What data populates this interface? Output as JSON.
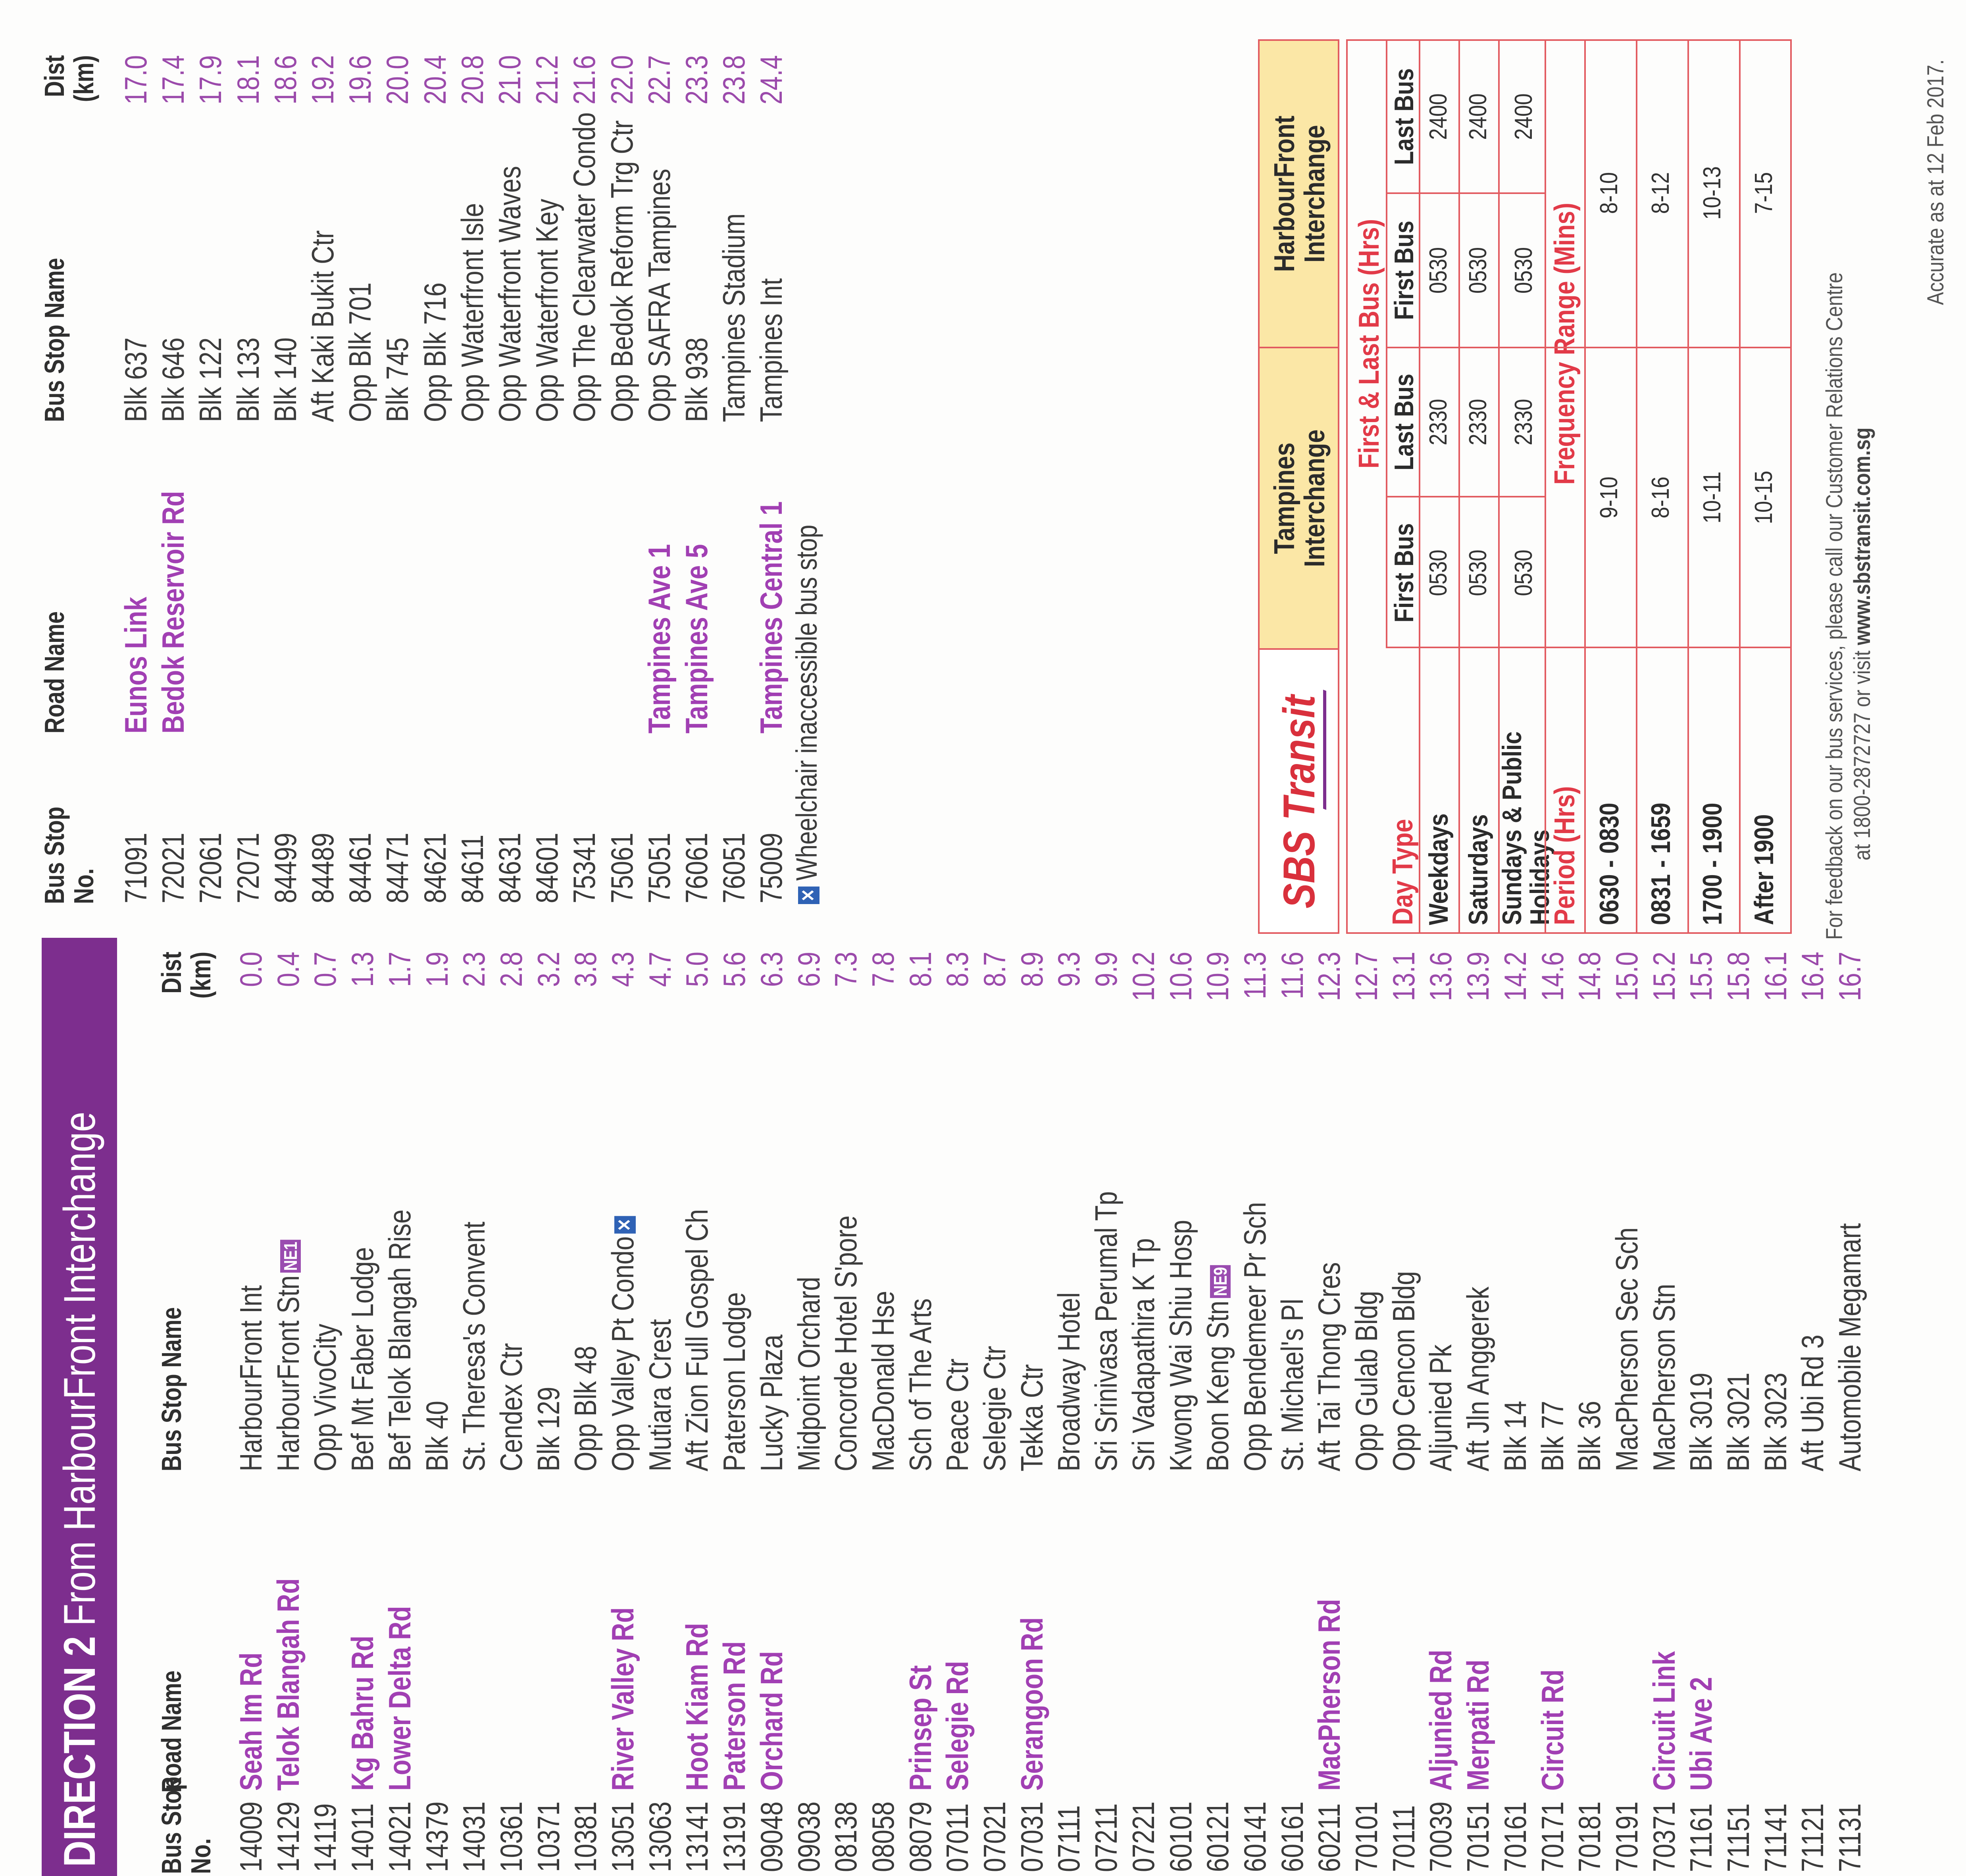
{
  "banner": {
    "lead": "DIRECTION 2",
    "rest": " From HarbourFront Interchange"
  },
  "headers": {
    "stop_no_l1": "Bus Stop",
    "stop_no_l2": "No.",
    "road": "Road Name",
    "name": "Bus Stop Name",
    "dist_l1": "Dist",
    "dist_l2": "(km)"
  },
  "stops_left": [
    {
      "no": "14009",
      "road": "Seah Im Rd",
      "name": "HarbourFront Int",
      "dist": "0.0"
    },
    {
      "no": "14129",
      "road": "Telok Blangah Rd",
      "name": "HarbourFront Stn",
      "tag": "NE1",
      "dist": "0.4"
    },
    {
      "no": "14119",
      "road": "",
      "name": "Opp VivoCity",
      "dist": "0.7"
    },
    {
      "no": "14011",
      "road": "Kg Bahru Rd",
      "name": "Bef Mt Faber Lodge",
      "dist": "1.3"
    },
    {
      "no": "14021",
      "road": "Lower Delta Rd",
      "name": "Bef Telok Blangah Rise",
      "dist": "1.7"
    },
    {
      "no": "14379",
      "road": "",
      "name": "Blk 40",
      "dist": "1.9"
    },
    {
      "no": "14031",
      "road": "",
      "name": "St. Theresa's Convent",
      "dist": "2.3"
    },
    {
      "no": "10361",
      "road": "",
      "name": "Cendex Ctr",
      "dist": "2.8"
    },
    {
      "no": "10371",
      "road": "",
      "name": "Blk 129",
      "dist": "3.2"
    },
    {
      "no": "10381",
      "road": "",
      "name": "Opp Blk 48",
      "dist": "3.8"
    },
    {
      "no": "13051",
      "road": "River Valley Rd",
      "name": "Opp Valley Pt Condo",
      "wc": true,
      "dist": "4.3"
    },
    {
      "no": "13063",
      "road": "",
      "name": "Mutiara Crest",
      "dist": "4.7"
    },
    {
      "no": "13141",
      "road": "Hoot Kiam Rd",
      "name": "Aft Zion Full Gospel Ch",
      "dist": "5.0"
    },
    {
      "no": "13191",
      "road": "Paterson Rd",
      "name": "Paterson Lodge",
      "dist": "5.6"
    },
    {
      "no": "09048",
      "road": "Orchard Rd",
      "name": "Lucky Plaza",
      "dist": "6.3"
    },
    {
      "no": "09038",
      "road": "",
      "name": "Midpoint Orchard",
      "dist": "6.9"
    },
    {
      "no": "08138",
      "road": "",
      "name": "Concorde Hotel S'pore",
      "dist": "7.3"
    },
    {
      "no": "08058",
      "road": "",
      "name": "MacDonald Hse",
      "dist": "7.8"
    },
    {
      "no": "08079",
      "road": "Prinsep St",
      "name": "Sch of The Arts",
      "dist": "8.1"
    },
    {
      "no": "07011",
      "road": "Selegie Rd",
      "name": "Peace Ctr",
      "dist": "8.3"
    },
    {
      "no": "07021",
      "road": "",
      "name": "Selegie Ctr",
      "dist": "8.7"
    },
    {
      "no": "07031",
      "road": "Serangoon Rd",
      "name": "Tekka Ctr",
      "dist": "8.9"
    },
    {
      "no": "07111",
      "road": "",
      "name": "Broadway Hotel",
      "dist": "9.3"
    },
    {
      "no": "07211",
      "road": "",
      "name": "Sri Srinivasa Perumal Tp",
      "dist": "9.9"
    },
    {
      "no": "07221",
      "road": "",
      "name": "Sri Vadapathira K Tp",
      "dist": "10.2"
    },
    {
      "no": "60101",
      "road": "",
      "name": "Kwong Wai Shiu Hosp",
      "dist": "10.6"
    },
    {
      "no": "60121",
      "road": "",
      "name": "Boon Keng Stn",
      "tag": "NE9",
      "dist": "10.9"
    },
    {
      "no": "60141",
      "road": "",
      "name": "Opp Bendemeer Pr Sch",
      "dist": "11.3"
    },
    {
      "no": "60161",
      "road": "",
      "name": "St. Michael's Pl",
      "dist": "11.6"
    },
    {
      "no": "60211",
      "road": "MacPherson Rd",
      "name": "Aft Tai Thong Cres",
      "dist": "12.3"
    },
    {
      "no": "70101",
      "road": "",
      "name": "Opp Gulab Bldg",
      "dist": "12.7"
    },
    {
      "no": "70111",
      "road": "",
      "name": "Opp Cencon Bldg",
      "dist": "13.1"
    },
    {
      "no": "70039",
      "road": "Aljunied Rd",
      "name": "Aljunied Pk",
      "dist": "13.6"
    },
    {
      "no": "70151",
      "road": "Merpati Rd",
      "name": "Aft Jln Anggerek",
      "dist": "13.9"
    },
    {
      "no": "70161",
      "road": "",
      "name": "Blk 14",
      "dist": "14.2"
    },
    {
      "no": "70171",
      "road": "Circuit Rd",
      "name": "Blk 77",
      "dist": "14.6"
    },
    {
      "no": "70181",
      "road": "",
      "name": "Blk 36",
      "dist": "14.8"
    },
    {
      "no": "70191",
      "road": "",
      "name": "MacPherson Sec Sch",
      "dist": "15.0"
    },
    {
      "no": "70371",
      "road": "Circuit Link",
      "name": "MacPherson Stn",
      "dist": "15.2"
    },
    {
      "no": "71161",
      "road": "Ubi Ave 2",
      "name": "Blk 3019",
      "dist": "15.5"
    },
    {
      "no": "71151",
      "road": "",
      "name": "Blk 3021",
      "dist": "15.8"
    },
    {
      "no": "71141",
      "road": "",
      "name": "Blk 3023",
      "dist": "16.1"
    },
    {
      "no": "71121",
      "road": "",
      "name": "Aft Ubi Rd 3",
      "dist": "16.4"
    },
    {
      "no": "71131",
      "road": "",
      "name": "Automobile Megamart",
      "dist": "16.7"
    }
  ],
  "stops_right": [
    {
      "no": "71091",
      "road": "Eunos Link",
      "name": "Blk 637",
      "dist": "17.0"
    },
    {
      "no": "72021",
      "road": "Bedok Reservoir Rd",
      "name": "Blk 646",
      "dist": "17.4"
    },
    {
      "no": "72061",
      "road": "",
      "name": "Blk 122",
      "dist": "17.9"
    },
    {
      "no": "72071",
      "road": "",
      "name": "Blk 133",
      "dist": "18.1"
    },
    {
      "no": "84499",
      "road": "",
      "name": "Blk 140",
      "dist": "18.6"
    },
    {
      "no": "84489",
      "road": "",
      "name": "Aft Kaki Bukit Ctr",
      "dist": "19.2"
    },
    {
      "no": "84461",
      "road": "",
      "name": "Opp Blk 701",
      "dist": "19.6"
    },
    {
      "no": "84471",
      "road": "",
      "name": "Blk 745",
      "dist": "20.0"
    },
    {
      "no": "84621",
      "road": "",
      "name": "Opp Blk 716",
      "dist": "20.4"
    },
    {
      "no": "84611",
      "road": "",
      "name": "Opp Waterfront Isle",
      "dist": "20.8"
    },
    {
      "no": "84631",
      "road": "",
      "name": "Opp Waterfront Waves",
      "dist": "21.0"
    },
    {
      "no": "84601",
      "road": "",
      "name": "Opp Waterfront Key",
      "dist": "21.2"
    },
    {
      "no": "75341",
      "road": "",
      "name": "Opp The Clearwater Condo",
      "dist": "21.6"
    },
    {
      "no": "75061",
      "road": "",
      "name": "Opp Bedok Reform Trg Ctr",
      "dist": "22.0"
    },
    {
      "no": "75051",
      "road": "Tampines Ave 1",
      "name": "Opp SAFRA Tampines",
      "dist": "22.7"
    },
    {
      "no": "76061",
      "road": "Tampines Ave 5",
      "name": "Blk 938",
      "dist": "23.3"
    },
    {
      "no": "76051",
      "road": "",
      "name": "Tampines Stadium",
      "dist": "23.8"
    },
    {
      "no": "75009",
      "road": "Tampines Central 1",
      "name": "Tampines Int",
      "dist": "24.4"
    }
  ],
  "legend": "Wheelchair inaccessible bus stop",
  "service": {
    "logo": "SBS Transit",
    "col_a": [
      "Tampines",
      "Interchange"
    ],
    "col_b": [
      "HarbourFront",
      "Interchange"
    ],
    "first_last_title": "First & Last Bus (Hrs)",
    "day_type_label": "Day Type",
    "first_bus": "First Bus",
    "last_bus": "Last Bus",
    "days": [
      {
        "label": "Weekdays",
        "a_first": "0530",
        "a_last": "2330",
        "b_first": "0530",
        "b_last": "2400"
      },
      {
        "label": "Saturdays",
        "a_first": "0530",
        "a_last": "2330",
        "b_first": "0530",
        "b_last": "2400"
      },
      {
        "label": "Sundays & Public Holidays",
        "l1": "Sundays & Public",
        "l2": "Holidays",
        "a_first": "0530",
        "a_last": "2330",
        "b_first": "0530",
        "b_last": "2400"
      }
    ],
    "period_label": "Period (Hrs)",
    "freq_title": "Frequency Range (Mins)",
    "periods": [
      {
        "label": "0630 - 0830",
        "a": "9-10",
        "b": "8-10"
      },
      {
        "label": "0831 - 1659",
        "a": "8-16",
        "b": "8-12"
      },
      {
        "label": "1700 - 1900",
        "a": "10-11",
        "b": "10-13"
      },
      {
        "label": "After 1900",
        "a": "10-15",
        "b": "7-15"
      }
    ]
  },
  "feedback": {
    "line1": "For feedback on our bus services, please call our Customer Relations Centre",
    "line2_a": "at 1800-2872727 or visit ",
    "line2_b": "www.sbstransit.com.sg"
  },
  "accurate": "Accurate as at 12 Feb 2017.",
  "colors": {
    "banner": "#7d2e8e",
    "road": "#a13fb3",
    "table_red": "#e23a48",
    "table_header_fill": "#fbe7a6",
    "wheelchair": "#2f62b5"
  }
}
